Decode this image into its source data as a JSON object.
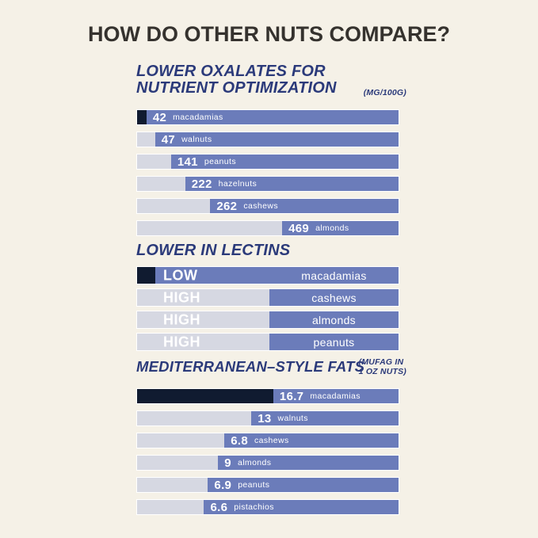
{
  "page": {
    "title": "HOW DO OTHER NUTS COMPARE?"
  },
  "colors": {
    "background": "#f5f1e7",
    "bar_blue": "#6b7cba",
    "segment_light": "#d6d8e2",
    "segment_navy": "#101b30",
    "heading_blue": "#2b3a7a",
    "title_dark": "#35322e",
    "bar_text": "#ffffff"
  },
  "chart_data": [
    {
      "type": "bar",
      "title": "LOWER OXALATES FOR NUTRIENT OPTIMIZATION",
      "title_lines": [
        "LOWER OXALATES FOR",
        "NUTRIENT OPTIMIZATION"
      ],
      "unit_note": "(MG/100G)",
      "unit_note_lines": [
        "(MG/100G)"
      ],
      "categories": [
        "macadamias",
        "walnuts",
        "peanuts",
        "hazelnuts",
        "cashews",
        "almonds"
      ],
      "values": [
        42,
        47,
        141,
        222,
        262,
        469
      ],
      "highlight_category": "macadamias",
      "segment_pct": [
        3.6,
        6.9,
        13,
        18.4,
        28,
        55.5
      ],
      "legend": "none",
      "grid": false
    },
    {
      "type": "bar",
      "title": "LOWER IN LECTINS",
      "categories": [
        "macadamias",
        "cashews",
        "almonds",
        "peanuts"
      ],
      "values": [
        "LOW",
        "HIGH",
        "HIGH",
        "HIGH"
      ],
      "highlight_category": "macadamias",
      "segment_pct": [
        6.9,
        50.6,
        50.6,
        50.6
      ],
      "legend": "none",
      "grid": false
    },
    {
      "type": "bar",
      "title": "MEDITERRANEAN–STYLE FATS",
      "unit_note": "(MUFAG IN 1 OZ NUTS)",
      "unit_note_lines": [
        "(MUFAG IN",
        "1 OZ NUTS)"
      ],
      "categories": [
        "macadamias",
        "walnuts",
        "cashews",
        "almonds",
        "peanuts",
        "pistachios"
      ],
      "values": [
        16.7,
        13,
        6.8,
        9,
        6.9,
        6.6
      ],
      "highlight_category": "macadamias",
      "segment_pct": [
        52.1,
        43.7,
        33.4,
        31,
        27.1,
        25.6
      ],
      "legend": "none",
      "grid": false
    }
  ]
}
